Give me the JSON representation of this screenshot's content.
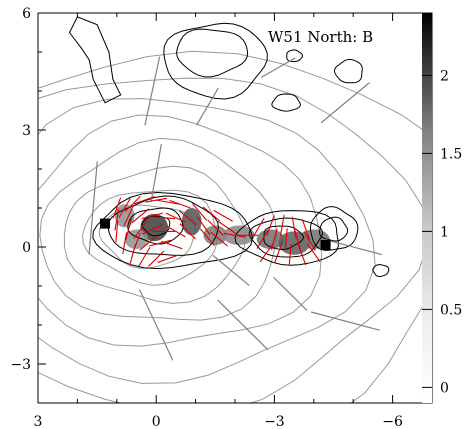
{
  "chart_data": {
    "type": "contour",
    "title": "W51 North: B",
    "xlabel": "",
    "ylabel": "",
    "xlim": [
      3,
      -7
    ],
    "ylim": [
      -4,
      6
    ],
    "x_ticks": [
      3,
      0,
      -3,
      -6
    ],
    "x_tick_labels": [
      "3",
      "0",
      "−3",
      "−6"
    ],
    "y_ticks": [
      6,
      3,
      0,
      -3
    ],
    "y_tick_labels": [
      "6",
      "3",
      "0",
      "−3"
    ],
    "colorbar": {
      "range": [
        -0.1,
        2.4
      ],
      "ticks": [
        0,
        0.5,
        1,
        1.5,
        2
      ],
      "tick_labels": [
        "0",
        "0.5",
        "1",
        "1.5",
        "2"
      ]
    },
    "grey_contour_levels": [
      {
        "cx": 0.2,
        "cy": 0.3,
        "rx": 1.2,
        "ry": 0.8
      },
      {
        "cx": 0.1,
        "cy": 0.3,
        "rx": 1.7,
        "ry": 1.2
      },
      {
        "cx": 0.0,
        "cy": 0.3,
        "rx": 2.3,
        "ry": 1.7
      },
      {
        "cx": -0.1,
        "cy": 0.3,
        "rx": 3.0,
        "ry": 2.3
      },
      {
        "cx": -0.3,
        "cy": 0.3,
        "rx": 3.9,
        "ry": 2.9
      },
      {
        "cx": -0.5,
        "cy": 0.2,
        "rx": 4.8,
        "ry": 3.6
      },
      {
        "cx": -0.7,
        "cy": 0.2,
        "rx": 5.8,
        "ry": 4.3
      },
      {
        "cx": -0.9,
        "cy": 0.1,
        "rx": 6.8,
        "ry": 5.0
      }
    ],
    "black_contours": [
      {
        "cx": 0.0,
        "cy": 0.55,
        "rx": 0.35,
        "ry": 0.25
      },
      {
        "cx": 0.0,
        "cy": 0.55,
        "rx": 0.7,
        "ry": 0.45
      },
      {
        "cx": -0.2,
        "cy": 0.5,
        "rx": 1.4,
        "ry": 0.75
      },
      {
        "cx": -0.4,
        "cy": 0.4,
        "rx": 2.0,
        "ry": 0.95
      },
      {
        "cx": -3.2,
        "cy": 0.25,
        "rx": 0.5,
        "ry": 0.3
      },
      {
        "cx": -3.3,
        "cy": 0.25,
        "rx": 0.9,
        "ry": 0.5
      },
      {
        "cx": -3.4,
        "cy": 0.25,
        "rx": 1.3,
        "ry": 0.7
      },
      {
        "cx": -4.5,
        "cy": 0.45,
        "rx": 0.35,
        "ry": 0.3
      },
      {
        "cx": -4.5,
        "cy": 0.45,
        "rx": 0.6,
        "ry": 0.55
      },
      {
        "cx": -1.4,
        "cy": 5.0,
        "rx": 0.9,
        "ry": 0.6
      },
      {
        "cx": -1.5,
        "cy": 4.8,
        "rx": 1.3,
        "ry": 0.95
      },
      {
        "cx": -4.9,
        "cy": 4.5,
        "rx": 0.35,
        "ry": 0.3
      },
      {
        "cx": -3.3,
        "cy": 3.7,
        "rx": 0.35,
        "ry": 0.22
      },
      {
        "cx": -3.5,
        "cy": 4.9,
        "rx": 0.2,
        "ry": 0.15
      },
      {
        "cx": -5.7,
        "cy": -0.6,
        "rx": 0.2,
        "ry": 0.15
      }
    ],
    "left_black_blob": [
      [
        1.9,
        5.1
      ],
      [
        2.2,
        5.5
      ],
      [
        2.0,
        5.9
      ],
      [
        1.5,
        5.7
      ],
      [
        1.2,
        5.0
      ],
      [
        1.1,
        4.3
      ],
      [
        0.9,
        3.9
      ],
      [
        1.3,
        3.7
      ],
      [
        1.6,
        4.3
      ],
      [
        1.7,
        4.8
      ]
    ],
    "grey_blobs": [
      {
        "x": 0.05,
        "y": 0.5,
        "rx": 0.35,
        "ry": 0.35,
        "level": 1.8
      },
      {
        "x": -0.9,
        "y": 0.65,
        "rx": 0.25,
        "ry": 0.35,
        "level": 1.6
      },
      {
        "x": -1.5,
        "y": 0.3,
        "rx": 0.3,
        "ry": 0.25,
        "level": 1.2
      },
      {
        "x": -2.1,
        "y": 0.3,
        "rx": 0.4,
        "ry": 0.25,
        "level": 1.1
      },
      {
        "x": -2.9,
        "y": 0.2,
        "rx": 0.35,
        "ry": 0.25,
        "level": 1.3
      },
      {
        "x": -3.5,
        "y": 0.1,
        "rx": 0.4,
        "ry": 0.3,
        "level": 1.5
      },
      {
        "x": -4.0,
        "y": 0.2,
        "rx": 0.4,
        "ry": 0.25,
        "level": 1.3
      },
      {
        "x": 0.8,
        "y": 0.8,
        "rx": 0.25,
        "ry": 0.3,
        "level": 1.0
      },
      {
        "x": 0.5,
        "y": 0.2,
        "rx": 0.3,
        "ry": 0.25,
        "level": 1.0
      }
    ],
    "black_squares": [
      {
        "x": 1.3,
        "y": 0.6,
        "level": 2.4
      },
      {
        "x": -4.3,
        "y": 0.05,
        "level": 2.4
      }
    ],
    "red_vectors": [
      {
        "x": 1.0,
        "y": 1.0,
        "angle": 70
      },
      {
        "x": 0.8,
        "y": 1.0,
        "angle": 60
      },
      {
        "x": 0.6,
        "y": 1.1,
        "angle": 45
      },
      {
        "x": 0.3,
        "y": 1.2,
        "angle": 20
      },
      {
        "x": 0.0,
        "y": 1.2,
        "angle": 10
      },
      {
        "x": -0.3,
        "y": 1.15,
        "angle": -10
      },
      {
        "x": -0.6,
        "y": 1.1,
        "angle": -20
      },
      {
        "x": 1.0,
        "y": 0.7,
        "angle": 80
      },
      {
        "x": 0.7,
        "y": 0.8,
        "angle": 65
      },
      {
        "x": 0.4,
        "y": 0.8,
        "angle": 40
      },
      {
        "x": 0.1,
        "y": 0.8,
        "angle": 15
      },
      {
        "x": -0.2,
        "y": 0.75,
        "angle": -5
      },
      {
        "x": -0.5,
        "y": 0.75,
        "angle": -25
      },
      {
        "x": -0.8,
        "y": 0.75,
        "angle": -40
      },
      {
        "x": 1.0,
        "y": 0.4,
        "angle": 85
      },
      {
        "x": 0.7,
        "y": 0.45,
        "angle": 75
      },
      {
        "x": 0.4,
        "y": 0.45,
        "angle": 55
      },
      {
        "x": 0.1,
        "y": 0.45,
        "angle": 25
      },
      {
        "x": -0.2,
        "y": 0.4,
        "angle": 0
      },
      {
        "x": -0.5,
        "y": 0.4,
        "angle": -30
      },
      {
        "x": -0.8,
        "y": 0.4,
        "angle": -45
      },
      {
        "x": 0.8,
        "y": 0.1,
        "angle": 80
      },
      {
        "x": 0.5,
        "y": 0.1,
        "angle": 70
      },
      {
        "x": 0.2,
        "y": 0.1,
        "angle": 40
      },
      {
        "x": -0.1,
        "y": 0.1,
        "angle": 15
      },
      {
        "x": -0.4,
        "y": 0.05,
        "angle": -20
      },
      {
        "x": 0.6,
        "y": -0.2,
        "angle": 75
      },
      {
        "x": 0.3,
        "y": -0.25,
        "angle": 60
      },
      {
        "x": 0.0,
        "y": -0.3,
        "angle": 45
      },
      {
        "x": -0.3,
        "y": -0.3,
        "angle": 20
      },
      {
        "x": -1.1,
        "y": 0.9,
        "angle": -50
      },
      {
        "x": -1.4,
        "y": 0.85,
        "angle": -40
      },
      {
        "x": -1.7,
        "y": 0.8,
        "angle": -30
      },
      {
        "x": -1.2,
        "y": 0.55,
        "angle": -55
      },
      {
        "x": -1.5,
        "y": 0.5,
        "angle": -45
      },
      {
        "x": -1.8,
        "y": 0.5,
        "angle": -35
      },
      {
        "x": -1.3,
        "y": 0.25,
        "angle": -50
      },
      {
        "x": -1.6,
        "y": 0.2,
        "angle": -40
      },
      {
        "x": -2.0,
        "y": 0.3,
        "angle": -10
      },
      {
        "x": -2.3,
        "y": 0.3,
        "angle": 0
      },
      {
        "x": -2.6,
        "y": 0.5,
        "angle": 60
      },
      {
        "x": -2.9,
        "y": 0.55,
        "angle": 70
      },
      {
        "x": -3.2,
        "y": 0.55,
        "angle": 80
      },
      {
        "x": -3.5,
        "y": 0.5,
        "angle": -80
      },
      {
        "x": -3.8,
        "y": 0.45,
        "angle": -70
      },
      {
        "x": -2.7,
        "y": 0.2,
        "angle": 60
      },
      {
        "x": -3.0,
        "y": 0.2,
        "angle": 75
      },
      {
        "x": -3.3,
        "y": 0.2,
        "angle": 85
      },
      {
        "x": -3.6,
        "y": 0.15,
        "angle": -75
      },
      {
        "x": -3.9,
        "y": 0.15,
        "angle": -60
      },
      {
        "x": -2.8,
        "y": -0.15,
        "angle": 55
      },
      {
        "x": -3.1,
        "y": -0.15,
        "angle": 70
      },
      {
        "x": -3.4,
        "y": -0.2,
        "angle": 85
      },
      {
        "x": -3.7,
        "y": -0.2,
        "angle": -70
      },
      {
        "x": -4.0,
        "y": -0.15,
        "angle": -55
      }
    ],
    "grey_vectors": [
      {
        "x": 0.1,
        "y": 4.0,
        "angle": 78,
        "len": 1.8
      },
      {
        "x": -1.3,
        "y": 3.6,
        "angle": 60,
        "len": 1.1
      },
      {
        "x": -3.1,
        "y": 4.6,
        "angle": 30,
        "len": 1.0
      },
      {
        "x": -4.8,
        "y": 3.7,
        "angle": 40,
        "len": 1.6
      },
      {
        "x": 0.0,
        "y": 1.9,
        "angle": 80,
        "len": 1.5
      },
      {
        "x": 1.6,
        "y": 1.0,
        "angle": 85,
        "len": 2.4
      },
      {
        "x": -1.9,
        "y": -0.6,
        "angle": -40,
        "len": 1.2
      },
      {
        "x": -2.2,
        "y": -2.0,
        "angle": -45,
        "len": 1.8
      },
      {
        "x": -3.4,
        "y": -1.2,
        "angle": -45,
        "len": 1.2
      },
      {
        "x": -4.8,
        "y": -1.9,
        "angle": -15,
        "len": 1.8
      },
      {
        "x": 0.0,
        "y": -2.0,
        "angle": -65,
        "len": 2.0
      },
      {
        "x": -5.0,
        "y": 0.0,
        "angle": -15,
        "len": 1.5
      }
    ]
  }
}
